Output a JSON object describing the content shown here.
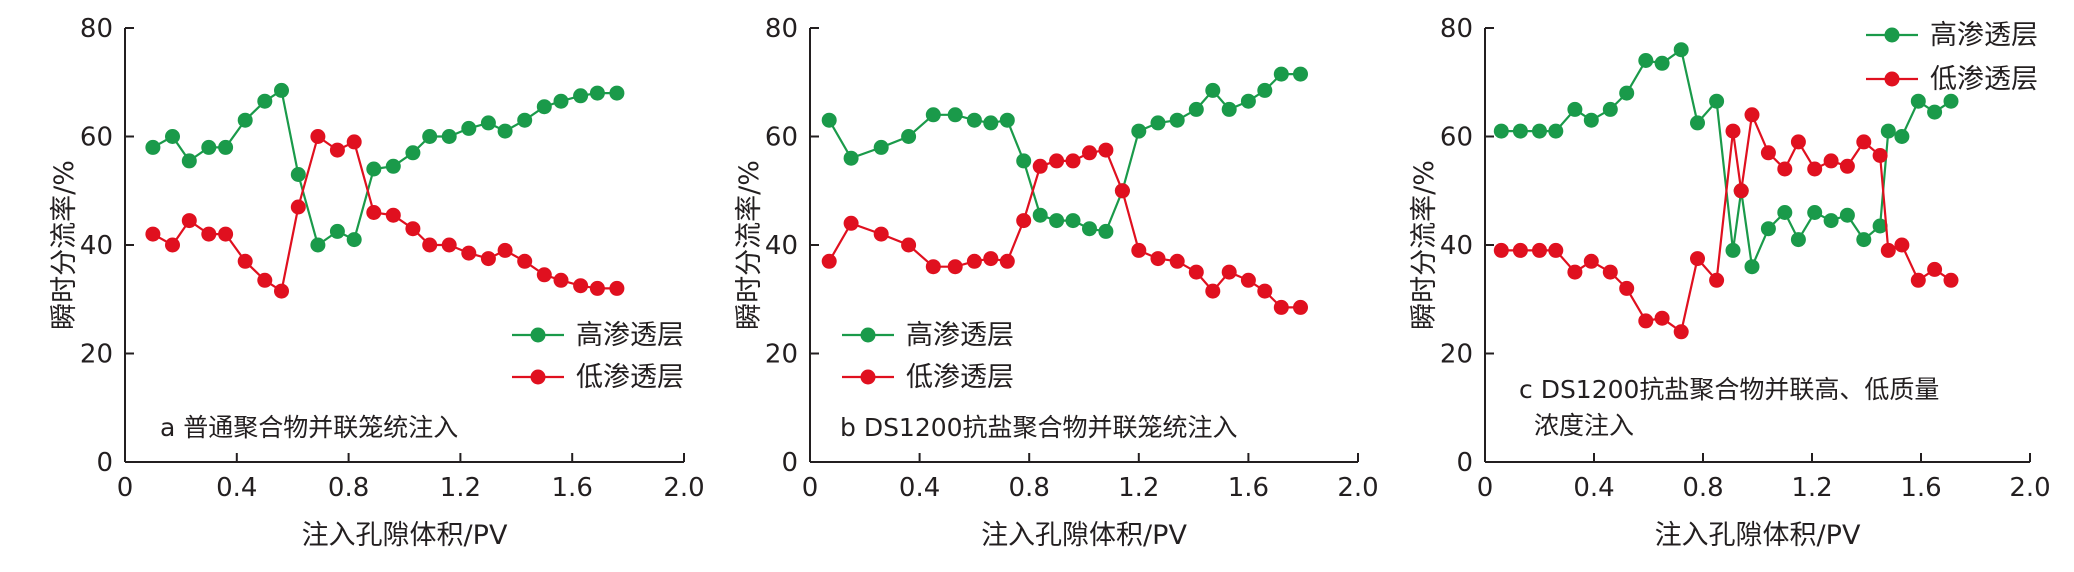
{
  "colors": {
    "high": "#1a9a4a",
    "low": "#e0101f",
    "axis": "#231f20"
  },
  "chart_data": [
    {
      "type": "line",
      "annotation": [
        "a 普通聚合物并联笼统注入"
      ],
      "xlabel": "注入孔隙体积/PV",
      "ylabel": "瞬时分流率/%",
      "xlim": [
        0,
        2.0
      ],
      "ylim": [
        0,
        80
      ],
      "xticks": [
        0,
        0.4,
        0.8,
        1.2,
        1.6,
        2.0
      ],
      "xtick_labels": [
        "0",
        "0.4",
        "0.8",
        "1.2",
        "1.6",
        "2.0"
      ],
      "yticks": [
        0,
        20,
        40,
        60,
        80
      ],
      "ytick_labels": [
        "0",
        "20",
        "40",
        "60",
        "80"
      ],
      "legend": "middle-right",
      "series": [
        {
          "name": "高渗透层",
          "color_key": "high",
          "x": [
            0.1,
            0.17,
            0.23,
            0.3,
            0.36,
            0.43,
            0.5,
            0.56,
            0.62,
            0.69,
            0.76,
            0.82,
            0.89,
            0.96,
            1.03,
            1.09,
            1.16,
            1.23,
            1.3,
            1.36,
            1.43,
            1.5,
            1.56,
            1.63,
            1.69,
            1.76
          ],
          "y": [
            58,
            60,
            55.5,
            58,
            58,
            63,
            66.5,
            68.5,
            53,
            40,
            42.5,
            41,
            54,
            54.5,
            57,
            60,
            60,
            61.5,
            62.5,
            61,
            63,
            65.5,
            66.5,
            67.5,
            68,
            68
          ]
        },
        {
          "name": "低渗透层",
          "color_key": "low",
          "x": [
            0.1,
            0.17,
            0.23,
            0.3,
            0.36,
            0.43,
            0.5,
            0.56,
            0.62,
            0.69,
            0.76,
            0.82,
            0.89,
            0.96,
            1.03,
            1.09,
            1.16,
            1.23,
            1.3,
            1.36,
            1.43,
            1.5,
            1.56,
            1.63,
            1.69,
            1.76
          ],
          "y": [
            42,
            40,
            44.5,
            42,
            42,
            37,
            33.5,
            31.5,
            47,
            60,
            57.5,
            59,
            46,
            45.5,
            43,
            40,
            40,
            38.5,
            37.5,
            39,
            37,
            34.5,
            33.5,
            32.5,
            32,
            32
          ]
        }
      ]
    },
    {
      "type": "line",
      "annotation": [
        "b DS1200抗盐聚合物并联笼统注入"
      ],
      "xlabel": "注入孔隙体积/PV",
      "ylabel": "瞬时分流率/%",
      "xlim": [
        0,
        2.0
      ],
      "ylim": [
        0,
        80
      ],
      "xticks": [
        0,
        0.4,
        0.8,
        1.2,
        1.6,
        2.0
      ],
      "xtick_labels": [
        "0",
        "0.4",
        "0.8",
        "1.2",
        "1.6",
        "2.0"
      ],
      "yticks": [
        0,
        20,
        40,
        60,
        80
      ],
      "ytick_labels": [
        "0",
        "20",
        "40",
        "60",
        "80"
      ],
      "legend": "middle-left",
      "series": [
        {
          "name": "高渗透层",
          "color_key": "high",
          "x": [
            0.07,
            0.15,
            0.26,
            0.36,
            0.45,
            0.53,
            0.6,
            0.66,
            0.72,
            0.78,
            0.84,
            0.9,
            0.96,
            1.02,
            1.08,
            1.14,
            1.2,
            1.27,
            1.34,
            1.41,
            1.47,
            1.53,
            1.6,
            1.66,
            1.72,
            1.79
          ],
          "y": [
            63,
            56,
            58,
            60,
            64,
            64,
            63,
            62.5,
            63,
            55.5,
            45.5,
            44.5,
            44.5,
            43,
            42.5,
            50,
            61,
            62.5,
            63,
            65,
            68.5,
            65,
            66.5,
            68.5,
            71.5,
            71.5
          ]
        },
        {
          "name": "低渗透层",
          "color_key": "low",
          "x": [
            0.07,
            0.15,
            0.26,
            0.36,
            0.45,
            0.53,
            0.6,
            0.66,
            0.72,
            0.78,
            0.84,
            0.9,
            0.96,
            1.02,
            1.08,
            1.14,
            1.2,
            1.27,
            1.34,
            1.41,
            1.47,
            1.53,
            1.6,
            1.66,
            1.72,
            1.79
          ],
          "y": [
            37,
            44,
            42,
            40,
            36,
            36,
            37,
            37.5,
            37,
            44.5,
            54.5,
            55.5,
            55.5,
            57,
            57.5,
            50,
            39,
            37.5,
            37,
            35,
            31.5,
            35,
            33.5,
            31.5,
            28.5,
            28.5
          ]
        }
      ]
    },
    {
      "type": "line",
      "annotation": [
        "c DS1200抗盐聚合物并联高、低质量",
        "浓度注入"
      ],
      "xlabel": "注入孔隙体积/PV",
      "ylabel": "瞬时分流率/%",
      "xlim": [
        0,
        2.0
      ],
      "ylim": [
        0,
        80
      ],
      "xticks": [
        0,
        0.4,
        0.8,
        1.2,
        1.6,
        2.0
      ],
      "xtick_labels": [
        "0",
        "0.4",
        "0.8",
        "1.2",
        "1.6",
        "2.0"
      ],
      "yticks": [
        0,
        20,
        40,
        60,
        80
      ],
      "ytick_labels": [
        "0",
        "20",
        "40",
        "60",
        "80"
      ],
      "legend": "top-right",
      "series": [
        {
          "name": "高渗透层",
          "color_key": "high",
          "x": [
            0.06,
            0.13,
            0.2,
            0.26,
            0.33,
            0.39,
            0.46,
            0.52,
            0.59,
            0.65,
            0.72,
            0.78,
            0.85,
            0.91,
            0.94,
            0.98,
            1.04,
            1.1,
            1.15,
            1.21,
            1.27,
            1.33,
            1.39,
            1.45,
            1.48,
            1.53,
            1.59,
            1.65,
            1.71
          ],
          "y": [
            61,
            61,
            61,
            61,
            65,
            63,
            65,
            68,
            74,
            73.5,
            76,
            62.5,
            66.5,
            39,
            50,
            36,
            43,
            46,
            41,
            46,
            44.5,
            45.5,
            41,
            43.5,
            61,
            60,
            66.5,
            64.5,
            66.5
          ]
        },
        {
          "name": "低渗透层",
          "color_key": "low",
          "x": [
            0.06,
            0.13,
            0.2,
            0.26,
            0.33,
            0.39,
            0.46,
            0.52,
            0.59,
            0.65,
            0.72,
            0.78,
            0.85,
            0.91,
            0.94,
            0.98,
            1.04,
            1.1,
            1.15,
            1.21,
            1.27,
            1.33,
            1.39,
            1.45,
            1.48,
            1.53,
            1.59,
            1.65,
            1.71
          ],
          "y": [
            39,
            39,
            39,
            39,
            35,
            37,
            35,
            32,
            26,
            26.5,
            24,
            37.5,
            33.5,
            61,
            50,
            64,
            57,
            54,
            59,
            54,
            55.5,
            54.5,
            59,
            56.5,
            39,
            40,
            33.5,
            35.5,
            33.5
          ]
        }
      ]
    }
  ]
}
